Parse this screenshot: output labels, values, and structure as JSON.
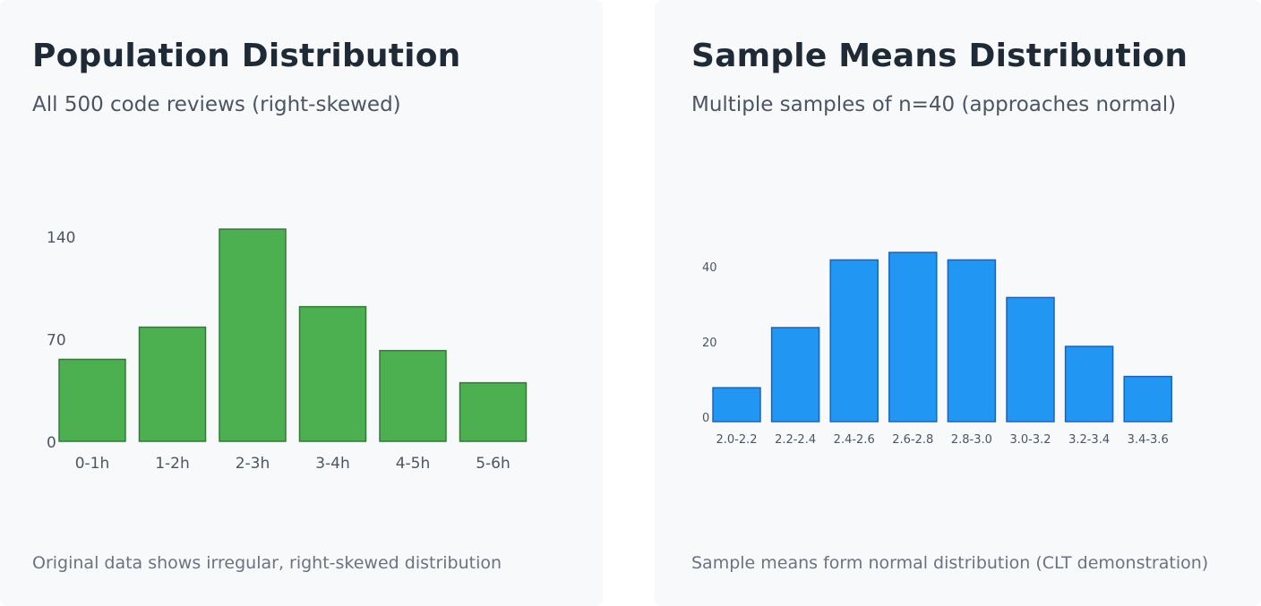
{
  "left_panel": {
    "title": "Population Distribution",
    "subtitle": "All 500 code reviews (right-skewed)",
    "caption": "Original data shows irregular, right-skewed distribution"
  },
  "right_panel": {
    "title": "Sample Means Distribution",
    "subtitle": "Multiple samples of n=40 (approaches normal)",
    "caption": "Sample means form normal distribution (CLT demonstration)"
  },
  "chart_data": [
    {
      "type": "bar",
      "categories": [
        "0-1h",
        "1-2h",
        "2-3h",
        "3-4h",
        "4-5h",
        "5-6h"
      ],
      "values": [
        56,
        78,
        145,
        92,
        62,
        40
      ],
      "yticks": [
        0,
        70,
        140
      ],
      "ylim": [
        0,
        145
      ],
      "color": "#4caf50",
      "edge_color": "#2e7d32",
      "grid": false
    },
    {
      "type": "bar",
      "categories": [
        "2.0-2.2",
        "2.2-2.4",
        "2.4-2.6",
        "2.6-2.8",
        "2.8-3.0",
        "3.0-3.2",
        "3.2-3.4",
        "3.4-3.6"
      ],
      "values": [
        9,
        25,
        43,
        45,
        43,
        33,
        20,
        12
      ],
      "yticks": [
        0,
        20,
        40
      ],
      "ylim": [
        0,
        45
      ],
      "color": "#2196f3",
      "edge_color": "#1565c0",
      "grid": false
    }
  ]
}
